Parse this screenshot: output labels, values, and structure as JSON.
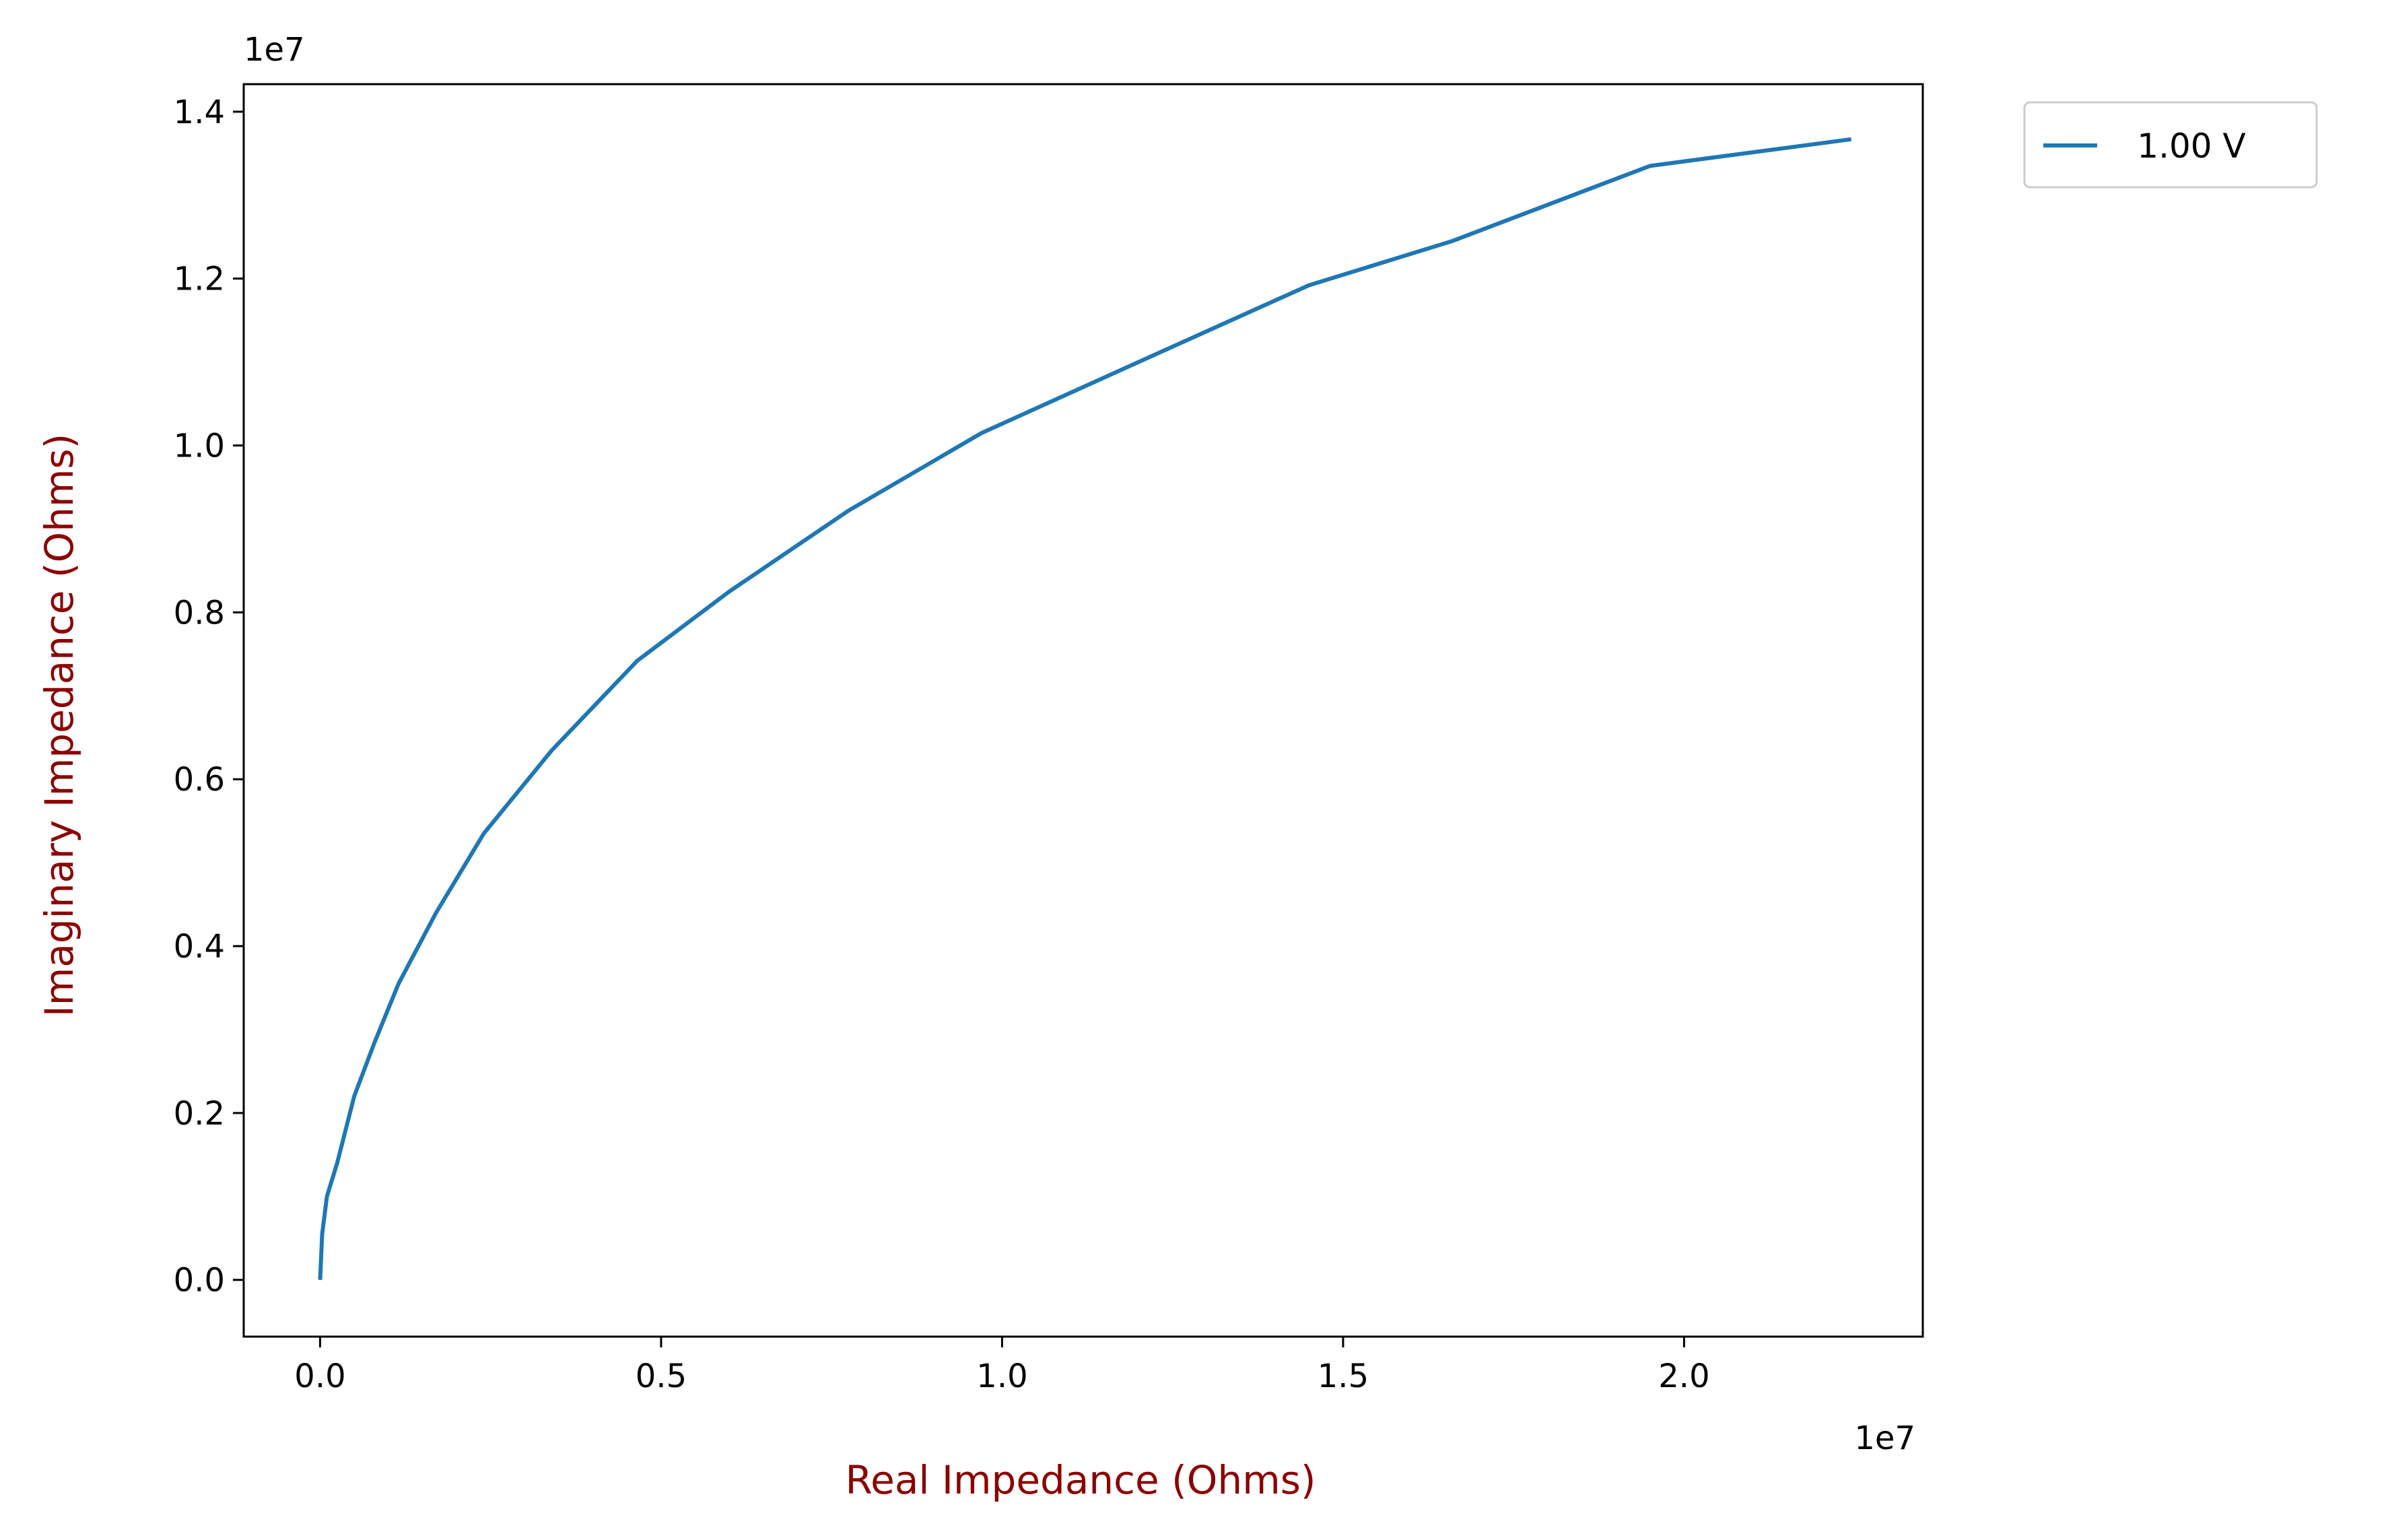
{
  "chart_data": {
    "type": "line",
    "title": "",
    "xlabel": "Real Impedance (Ohms)",
    "ylabel": "Imaginary Impedance (Ohms)",
    "x_offset_text": "1e7",
    "y_offset_text": "1e7",
    "xlim": [
      -0.112,
      2.35
    ],
    "ylim": [
      -0.068,
      1.433
    ],
    "x_ticks": [
      0.0,
      0.5,
      1.0,
      1.5,
      2.0
    ],
    "x_tick_labels": [
      "0.0",
      "0.5",
      "1.0",
      "1.5",
      "2.0"
    ],
    "y_ticks": [
      0.0,
      0.2,
      0.4,
      0.6,
      0.8,
      1.0,
      1.2,
      1.4
    ],
    "y_tick_labels": [
      "0.0",
      "0.2",
      "0.4",
      "0.6",
      "0.8",
      "1.0",
      "1.2",
      "1.4"
    ],
    "grid": false,
    "legend_position": "outside top-right",
    "series": [
      {
        "name": "1.00 V",
        "color": "#1f77b4",
        "x": [
          0.0,
          0.003,
          0.01,
          0.025,
          0.05,
          0.08,
          0.115,
          0.17,
          0.24,
          0.34,
          0.465,
          0.6,
          0.775,
          0.97,
          1.2,
          1.45,
          1.66,
          1.95,
          2.245
        ],
        "y": [
          0.0,
          0.055,
          0.1,
          0.14,
          0.22,
          0.285,
          0.355,
          0.44,
          0.535,
          0.635,
          0.742,
          0.825,
          0.922,
          1.015,
          1.1,
          1.192,
          1.245,
          1.335,
          1.367
        ]
      }
    ]
  },
  "colors": {
    "axis_label": "#8b0000",
    "line": "#1f77b4",
    "frame": "#000000",
    "legend_border": "#cccccc"
  }
}
